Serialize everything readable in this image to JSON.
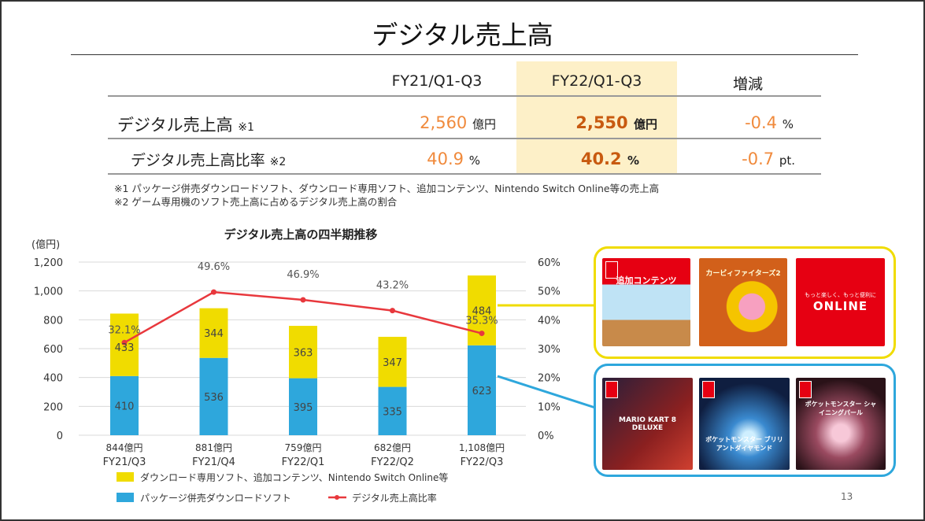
{
  "title": "デジタル売上高",
  "table": {
    "headers": [
      "FY21/Q1-Q3",
      "FY22/Q1-Q3",
      "増減"
    ],
    "rows": [
      {
        "label": "デジタル売上高",
        "note": "※1",
        "fy21": "2,560",
        "fy21_unit": "億円",
        "fy22": "2,550",
        "fy22_unit": "億円",
        "change": "-0.4",
        "change_unit": "%"
      },
      {
        "label": "デジタル売上高比率",
        "note": "※2",
        "fy21": "40.9",
        "fy21_unit": "%",
        "fy22": "40.2",
        "fy22_unit": "%",
        "change": "-0.7",
        "change_unit": "pt."
      }
    ],
    "highlight_color": "#fdf0c8"
  },
  "footnotes": [
    "※1 パッケージ併売ダウンロードソフト、ダウンロード専用ソフト、追加コンテンツ、Nintendo Switch Online等の売上高",
    "※2 ゲーム専用機のソフト売上高に占めるデジタル売上高の割合"
  ],
  "chart_data": {
    "type": "bar",
    "stacked": true,
    "title": "デジタル売上高の四半期推移",
    "ylabel": "(億円)",
    "ylim": [
      0,
      1200
    ],
    "yticks": [
      "0",
      "200",
      "400",
      "600",
      "800",
      "1,000",
      "1,200"
    ],
    "y2lim": [
      0,
      60
    ],
    "y2ticks": [
      "0%",
      "10%",
      "20%",
      "30%",
      "40%",
      "50%",
      "60%"
    ],
    "grid": true,
    "legend": "bottom",
    "categories": [
      "FY21/Q3",
      "FY21/Q4",
      "FY22/Q1",
      "FY22/Q2",
      "FY22/Q3"
    ],
    "totals": [
      "844億円",
      "881億円",
      "759億円",
      "682億円",
      "1,108億円"
    ],
    "series": [
      {
        "name": "パッケージ併売ダウンロードソフト",
        "type": "bar",
        "color": "#2ea7dc",
        "values": [
          410,
          536,
          395,
          335,
          623
        ]
      },
      {
        "name": "ダウンロード専用ソフト、追加コンテンツ、Nintendo Switch Online等",
        "type": "bar",
        "color": "#f0dc00",
        "values": [
          433,
          344,
          363,
          347,
          484
        ]
      },
      {
        "name": "デジタル売上高比率",
        "type": "line",
        "axis": "right",
        "color": "#e8383d",
        "values": [
          32.1,
          49.6,
          46.9,
          43.2,
          35.3
        ],
        "labels": [
          "32.1%",
          "49.6%",
          "46.9%",
          "43.2%",
          "35.3%"
        ]
      }
    ]
  },
  "images": {
    "top": [
      {
        "caption": "追加コンテンツ",
        "color": "#e60012"
      },
      {
        "caption": "カービィファイターズ2",
        "color": "#e07a1a"
      },
      {
        "caption": "ONLINE",
        "sub": "もっと楽しく、もっと便利に",
        "color": "#e60012"
      }
    ],
    "bottom": [
      {
        "caption": "MARIO KART 8 DELUXE",
        "color": "#3a2a3a"
      },
      {
        "caption": "ポケットモンスター ブリリアントダイヤモンド",
        "color": "#14325a"
      },
      {
        "caption": "ポケットモンスター シャイニングパール",
        "color": "#4a2530"
      }
    ],
    "top_border": "#f0dc00",
    "bottom_border": "#2ea7dc"
  },
  "page_number": "13"
}
